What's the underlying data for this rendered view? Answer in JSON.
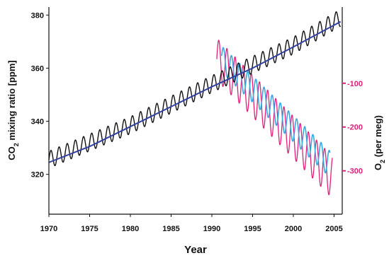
{
  "colors": {
    "co2_monthly": "#111111",
    "co2_trend": "#3340a0",
    "o2_monthly": "#e0207a",
    "o2_trend": "#3aa8e0",
    "axis": "#111111"
  },
  "chart_data": {
    "type": "line",
    "xlabel": "Year",
    "ylabel_left": {
      "main": "CO",
      "sub": "2",
      "rest": " mixing ratio [ppm]"
    },
    "ylabel_right": {
      "main": "O",
      "sub": "2",
      "rest": " (per meg)"
    },
    "x_range": [
      1970,
      2006
    ],
    "y_left_range": [
      305,
      383
    ],
    "y_right_range": [
      -399,
      74
    ],
    "x_ticks": [
      {
        "value": 1970,
        "label": "1970"
      },
      {
        "value": 1975,
        "label": "1975"
      },
      {
        "value": 1980,
        "label": "1980"
      },
      {
        "value": 1985,
        "label": "1985"
      },
      {
        "value": 1990,
        "label": "1990"
      },
      {
        "value": 1995,
        "label": "1995"
      },
      {
        "value": 2000,
        "label": "2000"
      },
      {
        "value": 2005,
        "label": "2005"
      }
    ],
    "y_left_ticks": [
      {
        "value": 320,
        "label": "320"
      },
      {
        "value": 340,
        "label": "340"
      },
      {
        "value": 360,
        "label": "360"
      },
      {
        "value": 380,
        "label": "380"
      }
    ],
    "y_right_ticks": [
      {
        "value": -100,
        "label": "-100"
      },
      {
        "value": -200,
        "label": "-200"
      },
      {
        "value": -300,
        "label": "-300"
      }
    ],
    "series": [
      {
        "axis": "left",
        "style": "monthly",
        "x_start": 1970,
        "x_end": 2005.8,
        "trend": [
          [
            1970,
            325.5
          ],
          [
            1980,
            338.5
          ],
          [
            1990,
            354
          ],
          [
            2000,
            368.5
          ],
          [
            2005.8,
            379
          ]
        ],
        "seasonal_amplitude": 3.2
      },
      {
        "axis": "left",
        "style": "trend",
        "points": [
          [
            1970,
            324.5
          ],
          [
            1975,
            330.5
          ],
          [
            1980,
            338
          ],
          [
            1985,
            345.5
          ],
          [
            1990,
            353
          ],
          [
            1995,
            360
          ],
          [
            2000,
            368
          ],
          [
            2005.8,
            377.5
          ]
        ]
      },
      {
        "axis": "right",
        "style": "monthly",
        "x_start": 1990.6,
        "x_end": 2004.8,
        "trend": [
          [
            1990.6,
            -45
          ],
          [
            2004.8,
            -315
          ]
        ],
        "seasonal_amplitude": 48
      },
      {
        "axis": "right",
        "style": "trend",
        "x_start": 1991.2,
        "x_end": 2004.5,
        "trend": [
          [
            1991.2,
            -45
          ],
          [
            2004.5,
            -285
          ]
        ],
        "seasonal_amplitude": 30
      }
    ]
  }
}
